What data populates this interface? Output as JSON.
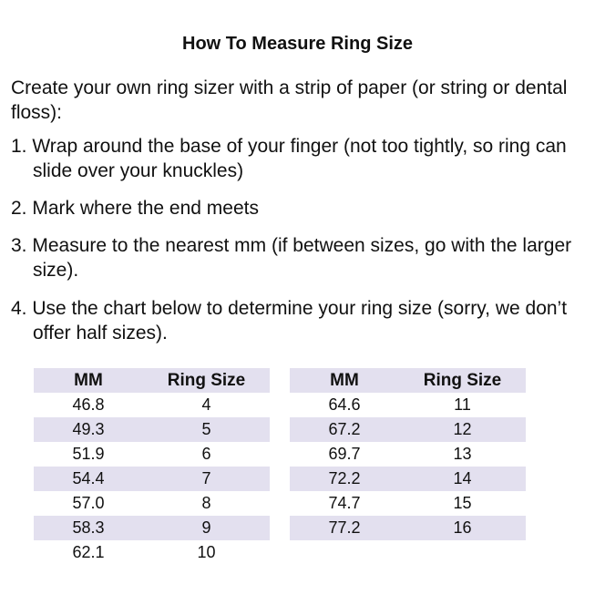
{
  "title": "How To Measure Ring Size",
  "intro": "Create your own ring sizer with a strip of paper (or string or dental floss):",
  "steps": [
    "1. Wrap around the base of your finger (not too tightly, so ring can slide over your knuckles)",
    "2. Mark where the end meets",
    "3. Measure to the nearest mm (if between sizes, go with the larger size).",
    "4. Use the chart below to determine your ring size (sorry, we don’t offer half sizes)."
  ],
  "table": {
    "headers": [
      "MM",
      "Ring Size"
    ],
    "left": [
      [
        "46.8",
        "4"
      ],
      [
        "49.3",
        "5"
      ],
      [
        "51.9",
        "6"
      ],
      [
        "54.4",
        "7"
      ],
      [
        "57.0",
        "8"
      ],
      [
        "58.3",
        "9"
      ],
      [
        "62.1",
        "10"
      ]
    ],
    "right": [
      [
        "64.6",
        "11"
      ],
      [
        "67.2",
        "12"
      ],
      [
        "69.7",
        "13"
      ],
      [
        "72.2",
        "14"
      ],
      [
        "74.7",
        "15"
      ],
      [
        "77.2",
        "16"
      ]
    ]
  },
  "colors": {
    "row_shade": "#e3e0ef"
  }
}
